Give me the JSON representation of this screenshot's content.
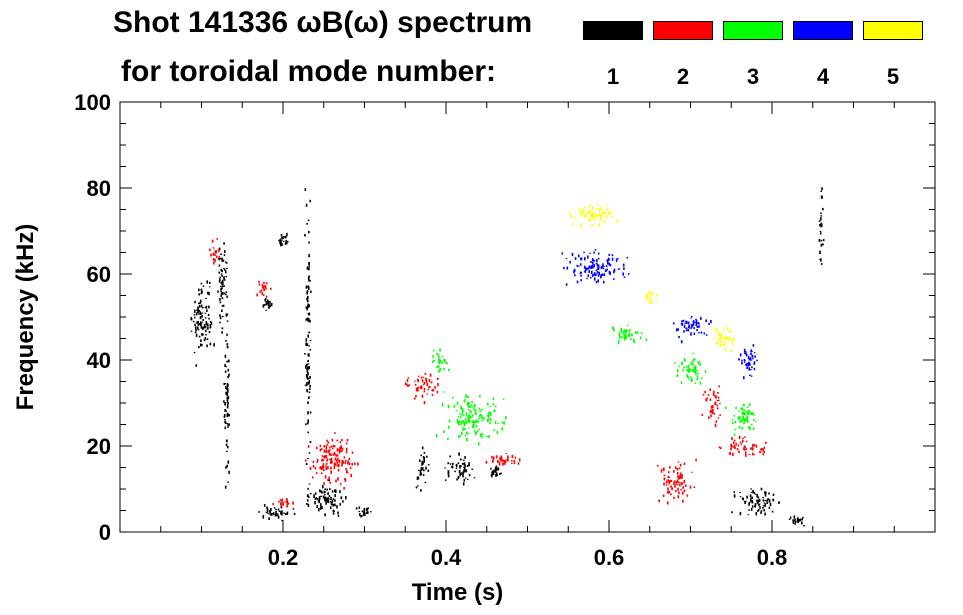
{
  "chart_data": {
    "type": "scatter",
    "title_line1": "Shot 141336 ωB(ω) spectrum",
    "title_line2": "for toroidal mode number:",
    "xlabel": "Time (s)",
    "ylabel": "Frequency (kHz)",
    "xlim": [
      0.0,
      1.0
    ],
    "ylim": [
      0,
      100
    ],
    "xticks": [
      0.2,
      0.4,
      0.6,
      0.8
    ],
    "xtick_labels": [
      "0.2",
      "0.4",
      "0.6",
      "0.8"
    ],
    "yticks": [
      0,
      20,
      40,
      60,
      80,
      100
    ],
    "ytick_labels": [
      "0",
      "20",
      "40",
      "60",
      "80",
      "100"
    ],
    "grid": false,
    "legend_position": "top-right",
    "series": [
      {
        "name": "1",
        "color": "#000000",
        "blobs": [
          {
            "x": 0.1,
            "y": 50,
            "dx": 0.02,
            "dy": 12
          },
          {
            "x": 0.125,
            "y": 58,
            "dx": 0.01,
            "dy": 15
          },
          {
            "x": 0.13,
            "y": 30,
            "dx": 0.006,
            "dy": 25
          },
          {
            "x": 0.18,
            "y": 53,
            "dx": 0.008,
            "dy": 3
          },
          {
            "x": 0.2,
            "y": 68,
            "dx": 0.006,
            "dy": 2
          },
          {
            "x": 0.19,
            "y": 5,
            "dx": 0.03,
            "dy": 3
          },
          {
            "x": 0.25,
            "y": 8,
            "dx": 0.035,
            "dy": 5
          },
          {
            "x": 0.3,
            "y": 5,
            "dx": 0.015,
            "dy": 2
          },
          {
            "x": 0.23,
            "y": 45,
            "dx": 0.005,
            "dy": 45
          },
          {
            "x": 0.37,
            "y": 15,
            "dx": 0.01,
            "dy": 7
          },
          {
            "x": 0.415,
            "y": 15,
            "dx": 0.025,
            "dy": 5
          },
          {
            "x": 0.46,
            "y": 14,
            "dx": 0.01,
            "dy": 2
          },
          {
            "x": 0.78,
            "y": 7,
            "dx": 0.035,
            "dy": 5
          },
          {
            "x": 0.83,
            "y": 3,
            "dx": 0.015,
            "dy": 2
          },
          {
            "x": 0.86,
            "y": 72,
            "dx": 0.004,
            "dy": 15
          }
        ]
      },
      {
        "name": "2",
        "color": "#ff0000",
        "blobs": [
          {
            "x": 0.115,
            "y": 65,
            "dx": 0.01,
            "dy": 4
          },
          {
            "x": 0.175,
            "y": 57,
            "dx": 0.01,
            "dy": 3
          },
          {
            "x": 0.26,
            "y": 17,
            "dx": 0.04,
            "dy": 8
          },
          {
            "x": 0.37,
            "y": 34,
            "dx": 0.03,
            "dy": 4
          },
          {
            "x": 0.47,
            "y": 17,
            "dx": 0.04,
            "dy": 2
          },
          {
            "x": 0.725,
            "y": 30,
            "dx": 0.015,
            "dy": 6
          },
          {
            "x": 0.76,
            "y": 20,
            "dx": 0.04,
            "dy": 3
          },
          {
            "x": 0.68,
            "y": 12,
            "dx": 0.03,
            "dy": 6
          },
          {
            "x": 0.2,
            "y": 7,
            "dx": 0.02,
            "dy": 2
          }
        ]
      },
      {
        "name": "3",
        "color": "#00ff00",
        "blobs": [
          {
            "x": 0.43,
            "y": 27,
            "dx": 0.05,
            "dy": 7
          },
          {
            "x": 0.62,
            "y": 46,
            "dx": 0.03,
            "dy": 3
          },
          {
            "x": 0.7,
            "y": 38,
            "dx": 0.025,
            "dy": 5
          },
          {
            "x": 0.765,
            "y": 27,
            "dx": 0.025,
            "dy": 5
          },
          {
            "x": 0.39,
            "y": 40,
            "dx": 0.015,
            "dy": 4
          }
        ]
      },
      {
        "name": "4",
        "color": "#0000ff",
        "blobs": [
          {
            "x": 0.58,
            "y": 62,
            "dx": 0.05,
            "dy": 5
          },
          {
            "x": 0.7,
            "y": 48,
            "dx": 0.03,
            "dy": 4
          },
          {
            "x": 0.77,
            "y": 40,
            "dx": 0.02,
            "dy": 5
          }
        ]
      },
      {
        "name": "5",
        "color": "#ffff00",
        "blobs": [
          {
            "x": 0.58,
            "y": 74,
            "dx": 0.04,
            "dy": 4
          },
          {
            "x": 0.65,
            "y": 55,
            "dx": 0.01,
            "dy": 2
          },
          {
            "x": 0.74,
            "y": 45,
            "dx": 0.02,
            "dy": 4
          }
        ]
      }
    ]
  }
}
